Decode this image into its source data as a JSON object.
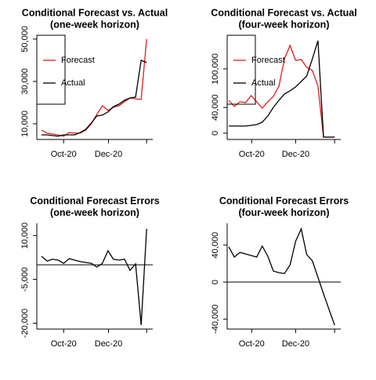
{
  "chart_data": [
    {
      "type": "line",
      "title": "Conditional Forecast vs. Actual",
      "subtitle": "(one-week horizon)",
      "x": [
        0,
        1,
        2,
        3,
        4,
        5,
        6,
        7,
        8,
        9,
        10,
        11,
        12,
        13,
        14,
        15,
        16,
        17,
        18,
        19
      ],
      "xlim": [
        -0.85,
        20.1
      ],
      "xticks": [
        {
          "value": 4.0,
          "label": "Oct-20"
        },
        {
          "value": 12.1,
          "label": "Dec-20"
        }
      ],
      "ylim": [
        2600,
        51800
      ],
      "yticks": [
        {
          "value": 10000,
          "label": "10,000"
        },
        {
          "value": 30000,
          "label": "30,000"
        },
        {
          "value": 50000,
          "label": "50,000"
        }
      ],
      "legend": "topleft",
      "series": [
        {
          "name": "Forecast",
          "color": "#e41a1c",
          "values": [
            7000,
            5600,
            5200,
            4800,
            4100,
            5900,
            5600,
            5600,
            7000,
            10000,
            14400,
            18500,
            16300,
            17800,
            18500,
            20400,
            22200,
            21800,
            21500,
            50000
          ]
        },
        {
          "name": "Actual",
          "color": "#000000",
          "values": [
            4800,
            4800,
            4450,
            4100,
            4800,
            4800,
            4800,
            5900,
            7400,
            10400,
            13700,
            14100,
            15600,
            18100,
            19300,
            21100,
            22200,
            22600,
            40000,
            38900
          ]
        }
      ]
    },
    {
      "type": "line",
      "title": "Conditional Forecast vs. Actual",
      "subtitle": "(four-week horizon)",
      "x": [
        0,
        1,
        2,
        3,
        4,
        5,
        6,
        7,
        8,
        9,
        10,
        11,
        12,
        13,
        14,
        15,
        16,
        17,
        18,
        19
      ],
      "xlim": [
        -0.3,
        20.1
      ],
      "xticks": [
        {
          "value": 4.1,
          "label": "Oct-20"
        },
        {
          "value": 12.0,
          "label": "Dec-20"
        }
      ],
      "ylim": [
        -9800,
        152400
      ],
      "yticks": [
        0,
        {
          "value": 40000,
          "label": "40,000"
        },
        {
          "value": 100000,
          "label": "100,000"
        }
      ],
      "legend": "topleft",
      "series": [
        {
          "name": "Forecast",
          "color": "#e41a1c",
          "values": [
            51200,
            41500,
            48800,
            47600,
            58500,
            48800,
            39000,
            48800,
            57300,
            73200,
            115900,
            136600,
            113400,
            114600,
            102400,
            97600,
            73200,
            -6100,
            -6100,
            -6100
          ]
        },
        {
          "name": "Actual",
          "color": "#000000",
          "values": [
            11000,
            11000,
            11000,
            11000,
            12200,
            13400,
            17100,
            26800,
            40200,
            51200,
            61000,
            65900,
            72000,
            80500,
            89000,
            115900,
            143900,
            -6100,
            -6100,
            -6100
          ]
        }
      ]
    },
    {
      "type": "line",
      "title": "Conditional Forecast Errors",
      "subtitle": "(one-week horizon)",
      "x": [
        0,
        1,
        2,
        3,
        4,
        5,
        6,
        7,
        8,
        9,
        10,
        11,
        12,
        13,
        14,
        15,
        16,
        17,
        18,
        19
      ],
      "xlim": [
        -0.85,
        20.1
      ],
      "xticks": [
        {
          "value": 4.0,
          "label": "Oct-20"
        },
        {
          "value": 12.1,
          "label": "Dec-20"
        }
      ],
      "ylim": [
        -22000,
        14200
      ],
      "yticks": [
        {
          "value": -20000,
          "label": "-20,000"
        },
        {
          "value": -5000,
          "label": "-5,000"
        },
        {
          "value": 10000,
          "label": "10,000"
        }
      ],
      "hline": 0,
      "series": [
        {
          "color": "#000000",
          "values": [
            2900,
            1300,
            1900,
            1600,
            500,
            2100,
            1600,
            1100,
            800,
            500,
            -800,
            500,
            4800,
            1900,
            1600,
            1900,
            -1900,
            300,
            -20600,
            12300
          ]
        }
      ]
    },
    {
      "type": "line",
      "title": "Conditional Forecast Errors",
      "subtitle": "(four-week horizon)",
      "x": [
        0,
        1,
        2,
        3,
        4,
        5,
        6,
        7,
        8,
        9,
        10,
        11,
        12,
        13,
        14,
        15,
        16,
        17,
        18,
        19
      ],
      "xlim": [
        -0.3,
        20.1
      ],
      "xticks": [
        {
          "value": 4.1,
          "label": "Oct-20"
        },
        {
          "value": 12.0,
          "label": "Dec-20"
        }
      ],
      "ylim": [
        -50800,
        63600
      ],
      "yticks": [
        {
          "value": -40000,
          "label": "-40,000"
        },
        0,
        {
          "value": 40000,
          "label": "40,000"
        }
      ],
      "hline": 0,
      "series": [
        {
          "color": "#000000",
          "values": [
            38100,
            27100,
            32200,
            30500,
            28800,
            27100,
            39000,
            28000,
            11900,
            10200,
            9300,
            18600,
            44100,
            57600,
            29700,
            22900,
            5100,
            -12700,
            -29700,
            -46600
          ]
        }
      ]
    }
  ]
}
